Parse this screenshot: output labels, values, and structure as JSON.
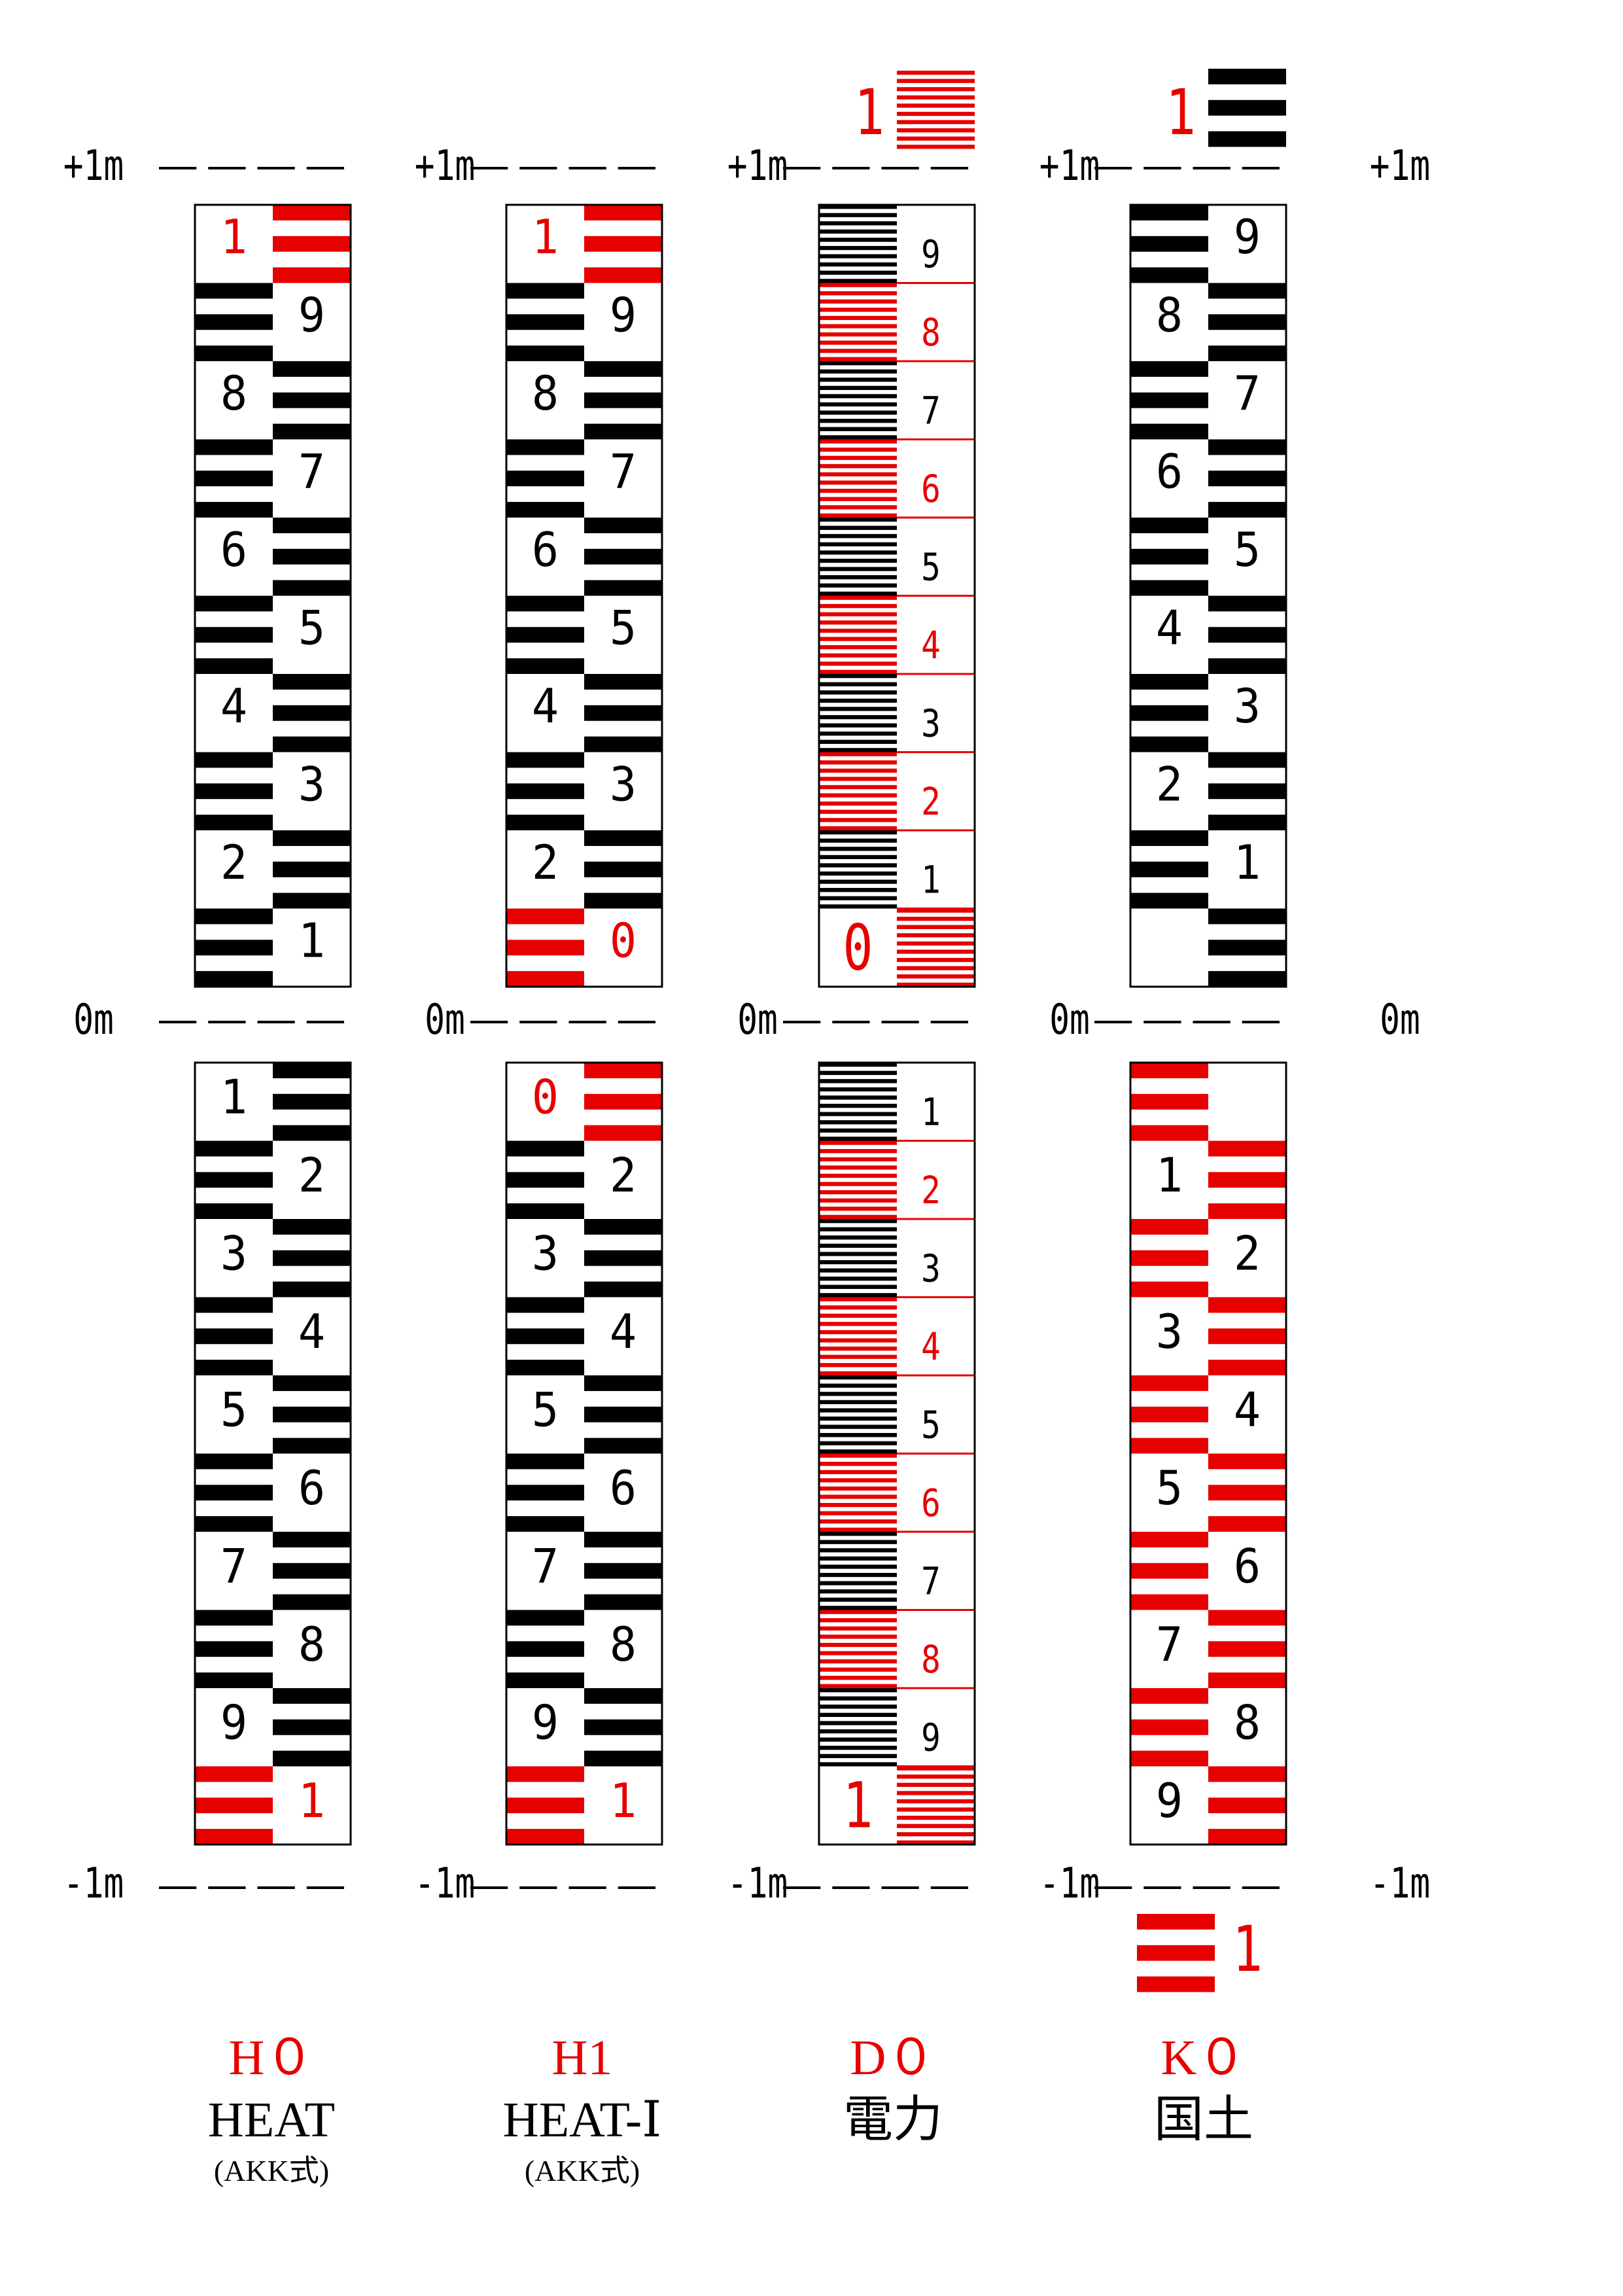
{
  "colors": {
    "black": "#000000",
    "red": "#e60000",
    "white": "#ffffff"
  },
  "levels": {
    "top": "+1m",
    "zero": "0m",
    "bottom": "-1m"
  },
  "staffs": [
    {
      "id": "H0",
      "code": "H０",
      "name": "HEAT",
      "note": "(AKK式)",
      "upper_digits": [
        "9",
        "8",
        "7",
        "6",
        "5",
        "4",
        "3",
        "2",
        "1"
      ],
      "upper_top": "1",
      "lower_digits": [
        "1",
        "2",
        "3",
        "4",
        "5",
        "6",
        "7",
        "8",
        "9"
      ],
      "lower_bottom": "1"
    },
    {
      "id": "H1",
      "code": "H1",
      "name": "HEAT-Ⅰ",
      "note": "(AKK式)",
      "upper_digits": [
        "9",
        "8",
        "7",
        "6",
        "5",
        "4",
        "3",
        "2"
      ],
      "upper_top": "1",
      "upper_zero": "0",
      "lower_zero": "0",
      "lower_digits": [
        "2",
        "3",
        "4",
        "5",
        "6",
        "7",
        "8",
        "9"
      ],
      "lower_bottom": "1"
    },
    {
      "id": "D0",
      "code": "D０",
      "name": "電力",
      "upper_above": "1",
      "upper_digits": [
        "9",
        "8",
        "7",
        "6",
        "5",
        "4",
        "3",
        "2",
        "1"
      ],
      "upper_zero": "0",
      "lower_digits": [
        "1",
        "2",
        "3",
        "4",
        "5",
        "6",
        "7",
        "8",
        "9"
      ],
      "lower_bottom": "1"
    },
    {
      "id": "K0",
      "code": "K０",
      "name": "国土",
      "upper_above": "1",
      "upper_digits": [
        "9",
        "8",
        "7",
        "6",
        "5",
        "4",
        "3",
        "2",
        "1"
      ],
      "lower_digits": [
        "1",
        "2",
        "3",
        "4",
        "5",
        "6",
        "7",
        "8",
        "9"
      ],
      "lower_below": "1"
    }
  ]
}
